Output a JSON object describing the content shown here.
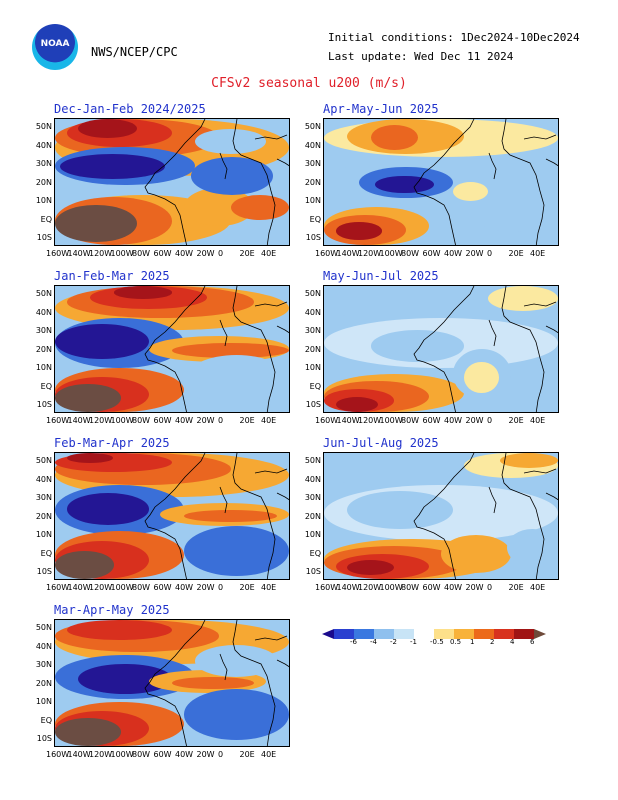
{
  "header": {
    "agency": "NWS/NCEP/CPC",
    "logo_text": "NOAA",
    "initial_conditions": "Initial conditions: 1Dec2024-10Dec2024",
    "last_update": "Last update: Wed Dec 11 2024",
    "title": "CFSv2 seasonal u200 (m/s)"
  },
  "panels": [
    {
      "title": "Dec-Jan-Feb 2024/2025"
    },
    {
      "title": "Apr-May-Jun 2025"
    },
    {
      "title": "Jan-Feb-Mar 2025"
    },
    {
      "title": "May-Jun-Jul 2025"
    },
    {
      "title": "Feb-Mar-Apr 2025"
    },
    {
      "title": "Jun-Jul-Aug 2025"
    },
    {
      "title": "Mar-Apr-May 2025"
    }
  ],
  "lat_labels": [
    "50N",
    "40N",
    "30N",
    "20N",
    "10N",
    "EQ",
    "10S"
  ],
  "lon_labels": [
    "160W",
    "140W",
    "120W",
    "100W",
    "80W",
    "60W",
    "40W",
    "20W",
    "0",
    "20E",
    "40E"
  ],
  "colorbar": {
    "labels": [
      "-6",
      "-4",
      "-2",
      "-1",
      "-0.5",
      "0.5",
      "1",
      "2",
      "4",
      "6"
    ],
    "colors": [
      "#1a0a8c",
      "#2a40d0",
      "#3a78e0",
      "#8fc0ee",
      "#c8e4f6",
      "#ffffff",
      "#fde08a",
      "#f8b23a",
      "#ec6a1a",
      "#d8321e",
      "#a01414",
      "#6e4a3a"
    ]
  },
  "palette": {
    "deep_blue": "#231694",
    "blue": "#3a6fd8",
    "light_blue": "#9ecbf0",
    "pale_blue": "#cfe6f8",
    "pale_yellow": "#fbe9a0",
    "orange": "#f6a833",
    "dark_orange": "#ea6620",
    "red": "#d8301e",
    "dark_red": "#a5141a",
    "brown": "#6b4d43",
    "title_red": "#e0202a",
    "panel_title_blue": "#2233cc"
  }
}
